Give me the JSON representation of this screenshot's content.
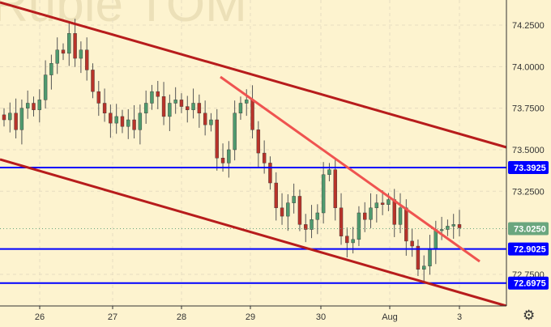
{
  "watermark": "Ruble TOM",
  "chart_data": {
    "type": "candlestick",
    "title": "",
    "x_ticks": [
      "26",
      "27",
      "28",
      "29",
      "30",
      "Aug",
      "3"
    ],
    "y_ticks": [
      "74.2500",
      "74.0000",
      "73.7500",
      "73.5000",
      "73.2500",
      "72.7500"
    ],
    "ylim": [
      72.55,
      74.35
    ],
    "closes": [
      73.68,
      73.72,
      73.62,
      73.75,
      73.78,
      73.74,
      73.8,
      73.95,
      74.02,
      74.1,
      74.08,
      74.2,
      74.05,
      74.1,
      73.98,
      73.85,
      73.78,
      73.72,
      73.66,
      73.7,
      73.64,
      73.68,
      73.62,
      73.72,
      73.78,
      73.85,
      73.82,
      73.7,
      73.78,
      73.8,
      73.76,
      73.74,
      73.78,
      73.72,
      73.65,
      73.68,
      73.45,
      73.42,
      73.5,
      73.72,
      73.78,
      73.8,
      73.62,
      73.48,
      73.42,
      73.3,
      73.15,
      73.1,
      73.18,
      73.22,
      73.05,
      73.02,
      73.08,
      73.12,
      73.35,
      73.38,
      73.15,
      72.98,
      72.94,
      72.96,
      73.12,
      73.08,
      73.15,
      73.18,
      73.17,
      73.2,
      73.05,
      73.15,
      72.95,
      72.92,
      72.78,
      72.8,
      72.9,
      73.02,
      73.02,
      73.04,
      73.05,
      73.03
    ],
    "current_price": "73.0250",
    "levels": [
      {
        "label": "73.3925",
        "value": 73.3925
      },
      {
        "label": "72.9025",
        "value": 72.9025
      },
      {
        "label": "72.6975",
        "value": 72.6975
      }
    ],
    "trendlines": [
      {
        "name": "channel-upper",
        "color": "#b71c1c"
      },
      {
        "name": "channel-lower",
        "color": "#b71c1c"
      },
      {
        "name": "resistance",
        "color": "#ef5350"
      }
    ],
    "colors": {
      "up": "#4f9a6e",
      "down": "#b8332a",
      "level": "#0000ff",
      "price_label": "#6aa67e"
    }
  },
  "settings_icon": "gear-icon"
}
